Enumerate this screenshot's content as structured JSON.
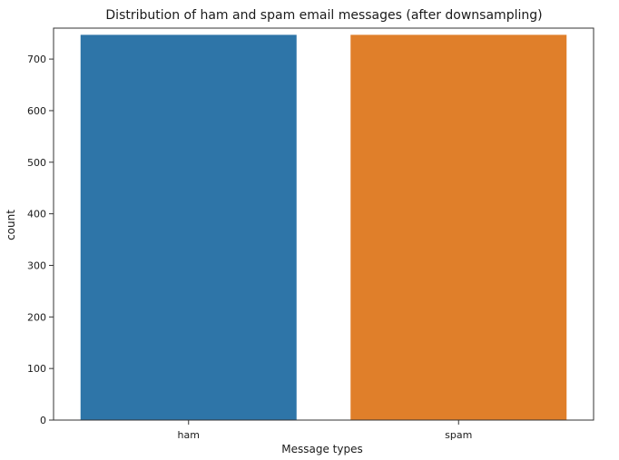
{
  "chart_data": {
    "type": "bar",
    "title": "Distribution of ham and spam email messages (after downsampling)",
    "xlabel": "Message types",
    "ylabel": "count",
    "categories": [
      "ham",
      "spam"
    ],
    "values": [
      747,
      747
    ],
    "colors": [
      "#2e75a8",
      "#e07f2a"
    ],
    "ylim": [
      0,
      760
    ],
    "yticks": [
      0,
      100,
      200,
      300,
      400,
      500,
      600,
      700
    ],
    "grid": false,
    "legend": "none"
  }
}
